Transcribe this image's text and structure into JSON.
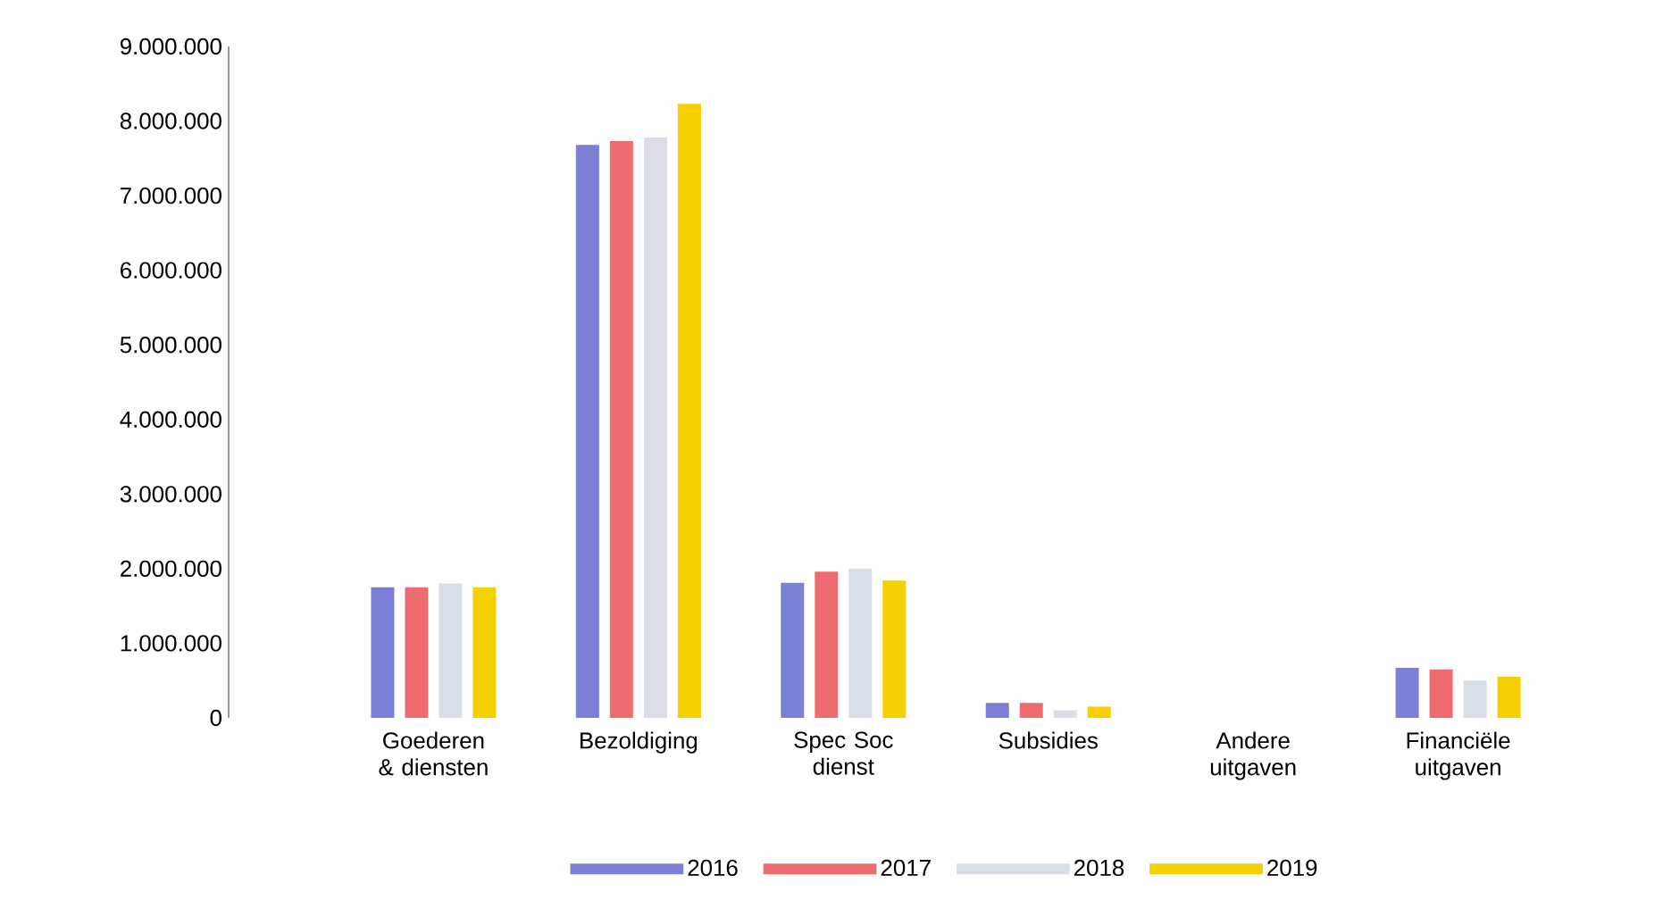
{
  "chart_data": {
    "type": "bar",
    "categories": [
      "Goederen & diensten",
      "Bezoldiging",
      "Spec Soc dienst",
      "Subsidies",
      "Andere uitgaven",
      "Financiële uitgaven"
    ],
    "series": [
      {
        "name": "2016",
        "color": "#7b7fd6",
        "values": [
          1750000,
          7680000,
          1810000,
          200000,
          0,
          670000
        ]
      },
      {
        "name": "2017",
        "color": "#ee6b6f",
        "values": [
          1750000,
          7730000,
          1960000,
          200000,
          0,
          650000
        ]
      },
      {
        "name": "2018",
        "color": "#d8dde6",
        "values": [
          1800000,
          7780000,
          2000000,
          100000,
          0,
          500000
        ]
      },
      {
        "name": "2019",
        "color": "#f5d000",
        "values": [
          1750000,
          8230000,
          1840000,
          150000,
          0,
          550000
        ]
      }
    ],
    "ylim": [
      0,
      9000000
    ],
    "yticks": [
      {
        "value": 0,
        "label": "0"
      },
      {
        "value": 1000000,
        "label": "1.000.000"
      },
      {
        "value": 2000000,
        "label": "2.000.000"
      },
      {
        "value": 3000000,
        "label": "3.000.000"
      },
      {
        "value": 4000000,
        "label": "4.000.000"
      },
      {
        "value": 5000000,
        "label": "5.000.000"
      },
      {
        "value": 6000000,
        "label": "6.000.000"
      },
      {
        "value": 7000000,
        "label": "7.000.000"
      },
      {
        "value": 8000000,
        "label": "8.000.000"
      },
      {
        "value": 9000000,
        "label": "9.000.000"
      }
    ],
    "grid": false,
    "legend": "bottom"
  }
}
